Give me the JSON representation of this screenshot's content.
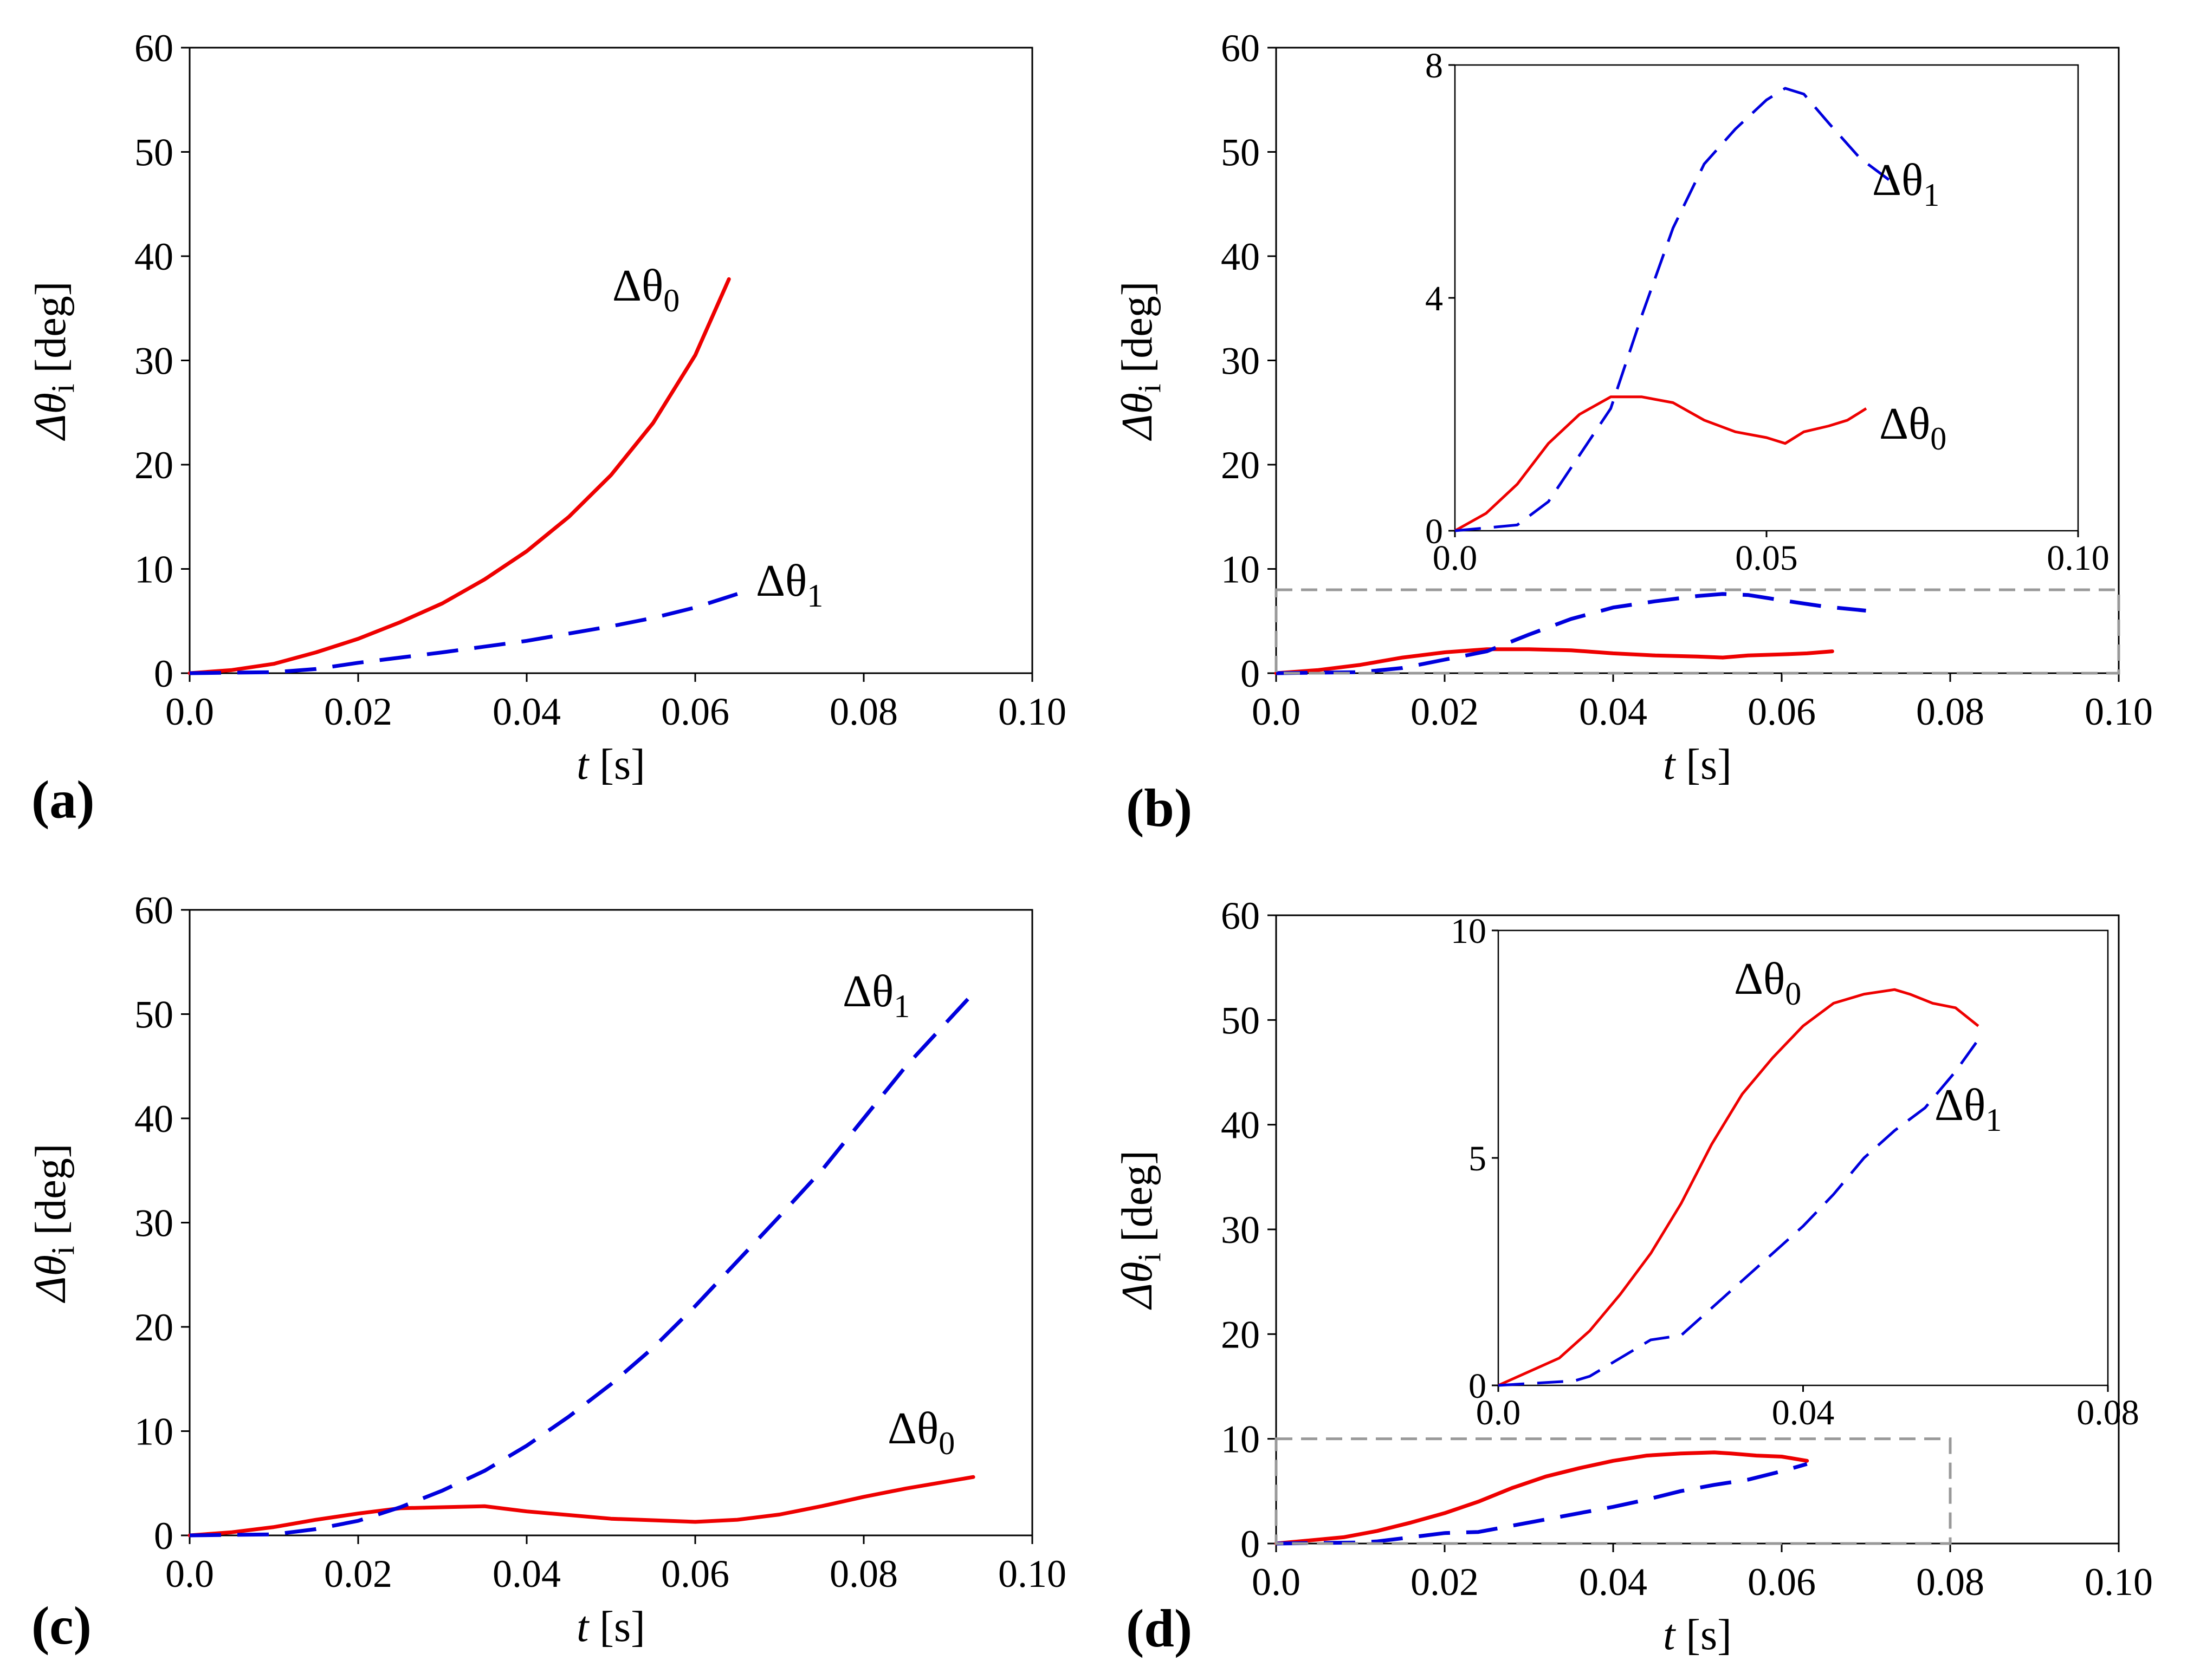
{
  "colors": {
    "theta0": "#ee0000",
    "theta1": "#0000dd",
    "zoom_box": "#999999",
    "frame": "#000000"
  },
  "chart_data": [
    {
      "type": "line",
      "panel_label": "(a)",
      "xlabel_var": "t",
      "xlabel_unit": " [s]",
      "ylabel_main": "Δθ",
      "ylabel_sub": "i",
      "ylabel_unit": " [deg]",
      "xlim": [
        0,
        0.1
      ],
      "ylim": [
        0,
        60
      ],
      "xticks": [
        0,
        0.02,
        0.04,
        0.06,
        0.08,
        0.1
      ],
      "xtick_labels": [
        "0.0",
        "0.02",
        "0.04",
        "0.06",
        "0.08",
        "0.10"
      ],
      "yticks": [
        0,
        10,
        20,
        30,
        40,
        50,
        60
      ],
      "ytick_labels": [
        "0",
        "10",
        "20",
        "30",
        "40",
        "50",
        "60"
      ],
      "series": [
        {
          "name": "Δθ0",
          "label_main": "Δθ",
          "label_sub": "0",
          "style": "solid",
          "x": [
            0,
            0.005,
            0.01,
            0.015,
            0.02,
            0.025,
            0.03,
            0.035,
            0.04,
            0.045,
            0.05,
            0.055,
            0.06,
            0.064
          ],
          "y": [
            0,
            0.3,
            0.9,
            2.0,
            3.3,
            4.9,
            6.7,
            9.0,
            11.7,
            15.0,
            19.0,
            24.0,
            30.5,
            37.8
          ]
        },
        {
          "name": "Δθ1",
          "label_main": "Δθ",
          "label_sub": "1",
          "style": "dashed",
          "x": [
            0,
            0.01,
            0.015,
            0.02,
            0.03,
            0.04,
            0.05,
            0.055,
            0.06,
            0.065
          ],
          "y": [
            0,
            0.1,
            0.4,
            1.0,
            2.0,
            3.1,
            4.5,
            5.3,
            6.3,
            7.6
          ]
        }
      ]
    },
    {
      "type": "line",
      "panel_label": "(b)",
      "xlabel_var": "t",
      "xlabel_unit": " [s]",
      "ylabel_main": "Δθ",
      "ylabel_sub": "i",
      "ylabel_unit": " [deg]",
      "xlim": [
        0,
        0.1
      ],
      "ylim": [
        0,
        60
      ],
      "xticks": [
        0,
        0.02,
        0.04,
        0.06,
        0.08,
        0.1
      ],
      "xtick_labels": [
        "0.0",
        "0.02",
        "0.04",
        "0.06",
        "0.08",
        "0.10"
      ],
      "yticks": [
        0,
        10,
        20,
        30,
        40,
        50,
        60
      ],
      "ytick_labels": [
        "0",
        "10",
        "20",
        "30",
        "40",
        "50",
        "60"
      ],
      "zoom_box": {
        "x": [
          0,
          0.1
        ],
        "y": [
          0,
          8
        ]
      },
      "series": [
        {
          "name": "Δθ0",
          "label_main": "Δθ",
          "label_sub": "0",
          "style": "solid",
          "x": [
            0,
            0.005,
            0.01,
            0.015,
            0.02,
            0.025,
            0.03,
            0.035,
            0.04,
            0.045,
            0.05,
            0.053,
            0.056,
            0.06,
            0.063,
            0.066
          ],
          "y": [
            0,
            0.3,
            0.8,
            1.5,
            2.0,
            2.3,
            2.3,
            2.2,
            1.9,
            1.7,
            1.6,
            1.5,
            1.7,
            1.8,
            1.9,
            2.1
          ]
        },
        {
          "name": "Δθ1",
          "label_main": "Δθ",
          "label_sub": "1",
          "style": "dashed",
          "x": [
            0,
            0.01,
            0.015,
            0.02,
            0.025,
            0.03,
            0.035,
            0.04,
            0.045,
            0.05,
            0.053,
            0.056,
            0.06,
            0.065,
            0.07
          ],
          "y": [
            0,
            0.1,
            0.5,
            1.3,
            2.1,
            3.7,
            5.2,
            6.3,
            6.9,
            7.4,
            7.6,
            7.5,
            7.0,
            6.4,
            6.0
          ]
        }
      ],
      "inset": {
        "xlim": [
          0,
          0.1
        ],
        "ylim": [
          0,
          8
        ],
        "xticks": [
          0,
          0.05,
          0.1
        ],
        "xtick_labels": [
          "0.0",
          "0.05",
          "0.10"
        ],
        "yticks": [
          0,
          4,
          8
        ],
        "ytick_labels": [
          "0",
          "4",
          "8"
        ]
      }
    },
    {
      "type": "line",
      "panel_label": "(c)",
      "xlabel_var": "t",
      "xlabel_unit": " [s]",
      "ylabel_main": "Δθ",
      "ylabel_sub": "i",
      "ylabel_unit": " [deg]",
      "xlim": [
        0,
        0.1
      ],
      "ylim": [
        0,
        60
      ],
      "xticks": [
        0,
        0.02,
        0.04,
        0.06,
        0.08,
        0.1
      ],
      "xtick_labels": [
        "0.0",
        "0.02",
        "0.04",
        "0.06",
        "0.08",
        "0.10"
      ],
      "yticks": [
        0,
        10,
        20,
        30,
        40,
        50,
        60
      ],
      "ytick_labels": [
        "0",
        "10",
        "20",
        "30",
        "40",
        "50",
        "60"
      ],
      "series": [
        {
          "name": "Δθ0",
          "label_main": "Δθ",
          "label_sub": "0",
          "style": "solid",
          "x": [
            0,
            0.005,
            0.01,
            0.015,
            0.02,
            0.025,
            0.03,
            0.035,
            0.04,
            0.05,
            0.06,
            0.065,
            0.07,
            0.075,
            0.08,
            0.085,
            0.093
          ],
          "y": [
            0,
            0.3,
            0.8,
            1.5,
            2.1,
            2.6,
            2.7,
            2.8,
            2.3,
            1.6,
            1.3,
            1.5,
            2.0,
            2.8,
            3.7,
            4.5,
            5.6
          ]
        },
        {
          "name": "Δθ1",
          "label_main": "Δθ",
          "label_sub": "1",
          "style": "dashed",
          "x": [
            0,
            0.01,
            0.015,
            0.02,
            0.025,
            0.03,
            0.035,
            0.04,
            0.045,
            0.05,
            0.055,
            0.06,
            0.065,
            0.07,
            0.075,
            0.08,
            0.085,
            0.093
          ],
          "y": [
            0,
            0.1,
            0.6,
            1.4,
            2.7,
            4.3,
            6.2,
            8.6,
            11.4,
            14.5,
            18.0,
            22.0,
            26.3,
            30.6,
            35.0,
            40.0,
            45.0,
            52.0
          ]
        }
      ]
    },
    {
      "type": "line",
      "panel_label": "(d)",
      "xlabel_var": "t",
      "xlabel_unit": " [s]",
      "ylabel_main": "Δθ",
      "ylabel_sub": "i",
      "ylabel_unit": " [deg]",
      "xlim": [
        0,
        0.1
      ],
      "ylim": [
        0,
        60
      ],
      "xticks": [
        0,
        0.02,
        0.04,
        0.06,
        0.08,
        0.1
      ],
      "xtick_labels": [
        "0.0",
        "0.02",
        "0.04",
        "0.06",
        "0.08",
        "0.10"
      ],
      "yticks": [
        0,
        10,
        20,
        30,
        40,
        50,
        60
      ],
      "ytick_labels": [
        "0",
        "10",
        "20",
        "30",
        "40",
        "50",
        "60"
      ],
      "zoom_box": {
        "x": [
          0,
          0.08
        ],
        "y": [
          0,
          10
        ]
      },
      "series": [
        {
          "name": "Δθ0",
          "label_main": "Δθ",
          "label_sub": "0",
          "style": "solid",
          "x": [
            0,
            0.004,
            0.008,
            0.012,
            0.016,
            0.02,
            0.024,
            0.028,
            0.032,
            0.036,
            0.04,
            0.044,
            0.048,
            0.052,
            0.054,
            0.057,
            0.06,
            0.063
          ],
          "y": [
            0,
            0.3,
            0.6,
            1.2,
            2.0,
            2.9,
            4.0,
            5.3,
            6.4,
            7.2,
            7.9,
            8.4,
            8.6,
            8.7,
            8.6,
            8.4,
            8.3,
            7.9
          ]
        },
        {
          "name": "Δθ1",
          "label_main": "Δθ",
          "label_sub": "1",
          "style": "dashed",
          "x": [
            0,
            0.01,
            0.012,
            0.016,
            0.02,
            0.024,
            0.028,
            0.032,
            0.036,
            0.04,
            0.044,
            0.048,
            0.052,
            0.056,
            0.06,
            0.063
          ],
          "y": [
            0,
            0.1,
            0.2,
            0.6,
            1.0,
            1.1,
            1.7,
            2.3,
            2.9,
            3.5,
            4.2,
            5.0,
            5.6,
            6.1,
            6.9,
            7.6
          ]
        }
      ],
      "inset": {
        "xlim": [
          0,
          0.08
        ],
        "ylim": [
          0,
          10
        ],
        "xticks": [
          0,
          0.04,
          0.08
        ],
        "xtick_labels": [
          "0.0",
          "0.04",
          "0.08"
        ],
        "yticks": [
          0,
          5,
          10
        ],
        "ytick_labels": [
          "0",
          "5",
          "10"
        ]
      }
    }
  ]
}
